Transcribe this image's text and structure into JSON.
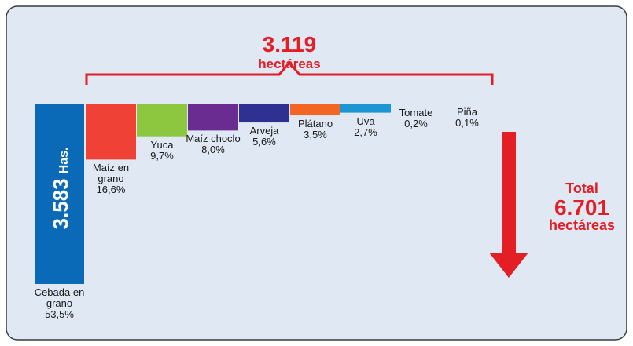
{
  "chart_data": {
    "type": "waterfall",
    "categories": [
      "Cebada en grano",
      "Maíz en grano",
      "Yuca",
      "Maíz choclo",
      "Arveja",
      "Plátano",
      "Uva",
      "Tomate",
      "Piña"
    ],
    "values": [
      53.5,
      16.6,
      9.7,
      8.0,
      5.6,
      3.5,
      2.7,
      0.2,
      0.1
    ],
    "value_labels": [
      "53,5%",
      "16,6%",
      "9,7%",
      "8,0%",
      "5,6%",
      "3,5%",
      "2,7%",
      "0,2%",
      "0,1%"
    ],
    "colors": [
      "#0a6ab8",
      "#ef4136",
      "#8dc63f",
      "#6a2c91",
      "#2e3192",
      "#f26522",
      "#1c95d4",
      "#e6007e",
      "#16a99c"
    ],
    "annotations": {
      "first_bar_total": {
        "value": 3583,
        "label": "3.583"
      },
      "first_bar_unit": "Has.",
      "rest_total": {
        "value": 3119,
        "label": "3.119"
      },
      "rest_unit": "hectáreas",
      "grand_total_title": "Total",
      "grand_total": {
        "value": 6701,
        "label": "6.701"
      },
      "grand_total_unit": "hectáreas"
    }
  }
}
